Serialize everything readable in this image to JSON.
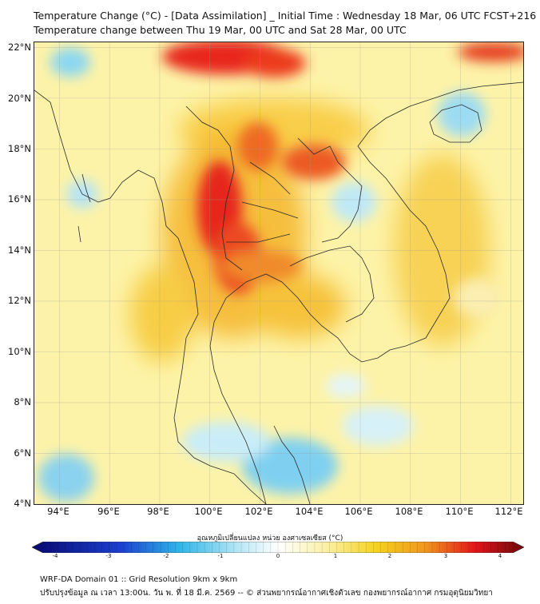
{
  "title_line1": "Temperature Change (°C) - [Data Assimilation] _ Initial Time : Wednesday 18 Mar, 06 UTC FCST+216",
  "title_line2": "Temperature change between Thu 19 Mar, 00 UTC and Sat 28 Mar, 00 UTC",
  "map": {
    "lon_range": [
      93,
      112.5
    ],
    "lat_range": [
      4,
      22.2
    ],
    "lat_ticks": [
      "22°N",
      "20°N",
      "18°N",
      "16°N",
      "14°N",
      "12°N",
      "10°N",
      "8°N",
      "6°N",
      "4°N"
    ],
    "lon_ticks": [
      "94°E",
      "96°E",
      "98°E",
      "100°E",
      "102°E",
      "104°E",
      "106°E",
      "108°E",
      "110°E",
      "112°E"
    ],
    "gridlines": true,
    "background_color": "#fdf3a8"
  },
  "colorbar": {
    "title": "อุณหภูมิเปลี่ยนแปลง หน่วย องศาเซลเซียส (°C)",
    "range": [
      -4,
      4
    ],
    "tick_labels": [
      "-4",
      "-3",
      "-2",
      "-1",
      "0",
      "1",
      "2",
      "3",
      "4"
    ],
    "colors": {
      "cold_end": "#08086e",
      "cool": "#2fb6e8",
      "neutral": "#ffffff",
      "warm": "#f5d21e",
      "hot": "#e3151a",
      "hot_end": "#6a0a0a"
    }
  },
  "footer_line1": "WRF-DA Domain 01 :: Grid Resolution 9km x 9km",
  "footer_line2": "ปรับปรุงข้อมูล ณ เวลา 13:00น. วัน พ. ที่ 18 มี.ค. 2569 -- © ส่วนพยากรณ์อากาศเชิงตัวเลข กองพยากรณ์อากาศ กรมอุตุนิยมวิทยา"
}
